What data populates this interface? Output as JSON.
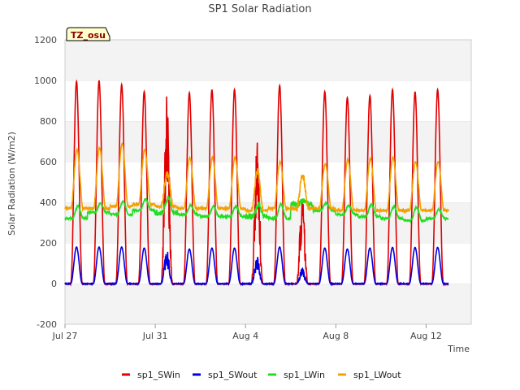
{
  "chart_data": {
    "type": "line",
    "title": "SP1 Solar Radiation",
    "xlabel": "Time",
    "ylabel": "Solar Radiation (W/m2)",
    "badge": "TZ_osu",
    "ylim": [
      -200,
      1200
    ],
    "yticks": [
      -200,
      0,
      200,
      400,
      600,
      800,
      1000,
      1200
    ],
    "ytick_labels": [
      "-200",
      "0",
      "200",
      "400",
      "600",
      "800",
      "1000",
      "1200"
    ],
    "xlim": [
      "2023-07-27",
      "2023-08-14"
    ],
    "xtick_dates": [
      "2023-07-27",
      "2023-07-31",
      "2023-08-04",
      "2023-08-08",
      "2023-08-12"
    ],
    "xtick_labels": [
      "Jul 27",
      "Jul 31",
      "Aug 4",
      "Aug 8",
      "Aug 12"
    ],
    "data_start": "2023-07-27",
    "data_end": "2023-08-13",
    "grid": "horizontal bands",
    "legend_position": "bottom",
    "sampling": "hourly, starting 2023-07-27 00:00",
    "series": [
      {
        "name": "sp1_SWin",
        "color": "#e00000",
        "daily_peaks": [
          995,
          1000,
          980,
          945,
          940,
          940,
          955,
          955,
          710,
          975,
          440,
          945,
          915,
          925,
          955,
          945,
          955
        ]
      },
      {
        "name": "sp1_SWout",
        "color": "#0000e0",
        "daily_peaks": [
          180,
          180,
          180,
          175,
          170,
          170,
          175,
          175,
          140,
          180,
          80,
          175,
          170,
          175,
          178,
          178,
          178
        ]
      },
      {
        "name": "sp1_LWin",
        "color": "#22dd22",
        "daily_base": [
          320,
          350,
          340,
          360,
          350,
          340,
          330,
          330,
          330,
          320,
          390,
          360,
          340,
          330,
          320,
          310,
          320
        ],
        "daily_peaks": [
          380,
          395,
          405,
          415,
          425,
          385,
          380,
          380,
          390,
          390,
          410,
          395,
          385,
          390,
          380,
          375,
          365
        ]
      },
      {
        "name": "sp1_LWout",
        "color": "#f5a000",
        "daily_base": [
          370,
          370,
          380,
          390,
          380,
          370,
          370,
          370,
          360,
          370,
          370,
          370,
          360,
          360,
          360,
          360,
          360
        ],
        "daily_peaks": [
          660,
          670,
          690,
          660,
          540,
          620,
          620,
          620,
          550,
          600,
          530,
          590,
          610,
          615,
          620,
          600,
          600
        ]
      }
    ]
  }
}
